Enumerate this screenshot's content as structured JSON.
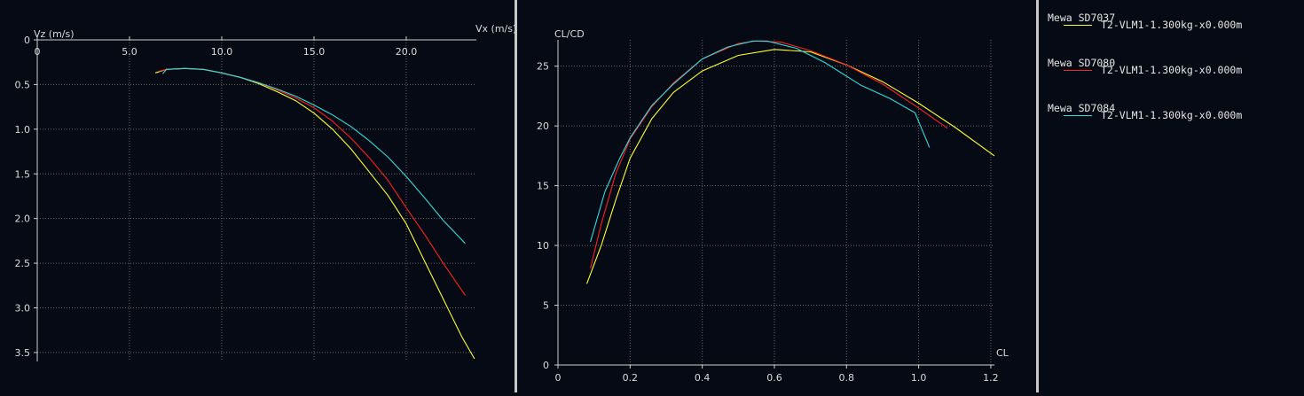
{
  "chart_data": [
    {
      "type": "line",
      "id": "polar-speed",
      "xlabel": "Vx (m/s)",
      "ylabel": "Vz (m/s)",
      "xlim": [
        0,
        23.8
      ],
      "ylim": [
        0,
        3.6
      ],
      "y_inverted": true,
      "x_axis_position": "top",
      "x_ticks": [
        0,
        5,
        10,
        15,
        20
      ],
      "x_tick_labels": [
        "0",
        "5.0",
        "10.0",
        "15.0",
        "20.0"
      ],
      "y_ticks": [
        0,
        0.5,
        1,
        1.5,
        2,
        2.5,
        3,
        3.5
      ],
      "y_tick_labels": [
        "0",
        "0.5",
        "1.0",
        "1.5",
        "2.0",
        "2.5",
        "3.0",
        "3.5"
      ],
      "grid": true,
      "series": [
        {
          "name": "T2-VLM1-1.300kg-x0.000m",
          "color": "#ffff33",
          "x": [
            6.4,
            7.0,
            8.0,
            9.0,
            10.0,
            11.0,
            12.0,
            13.0,
            14.0,
            15.0,
            16.0,
            17.0,
            18.0,
            19.0,
            20.0,
            21.0,
            22.0,
            23.0,
            23.7
          ],
          "y": [
            0.37,
            0.33,
            0.32,
            0.33,
            0.37,
            0.42,
            0.49,
            0.58,
            0.68,
            0.82,
            1.0,
            1.22,
            1.48,
            1.74,
            2.06,
            2.48,
            2.9,
            3.32,
            3.57
          ]
        },
        {
          "name": "T2-VLM1-1.300kg-x0.000m",
          "color": "#ff2020",
          "x": [
            6.6,
            7.0,
            8.0,
            9.0,
            10.0,
            11.0,
            12.0,
            13.0,
            14.0,
            15.0,
            16.0,
            17.0,
            18.0,
            19.0,
            20.0,
            21.0,
            22.0,
            23.2
          ],
          "y": [
            0.35,
            0.33,
            0.32,
            0.33,
            0.37,
            0.42,
            0.48,
            0.56,
            0.65,
            0.76,
            0.91,
            1.1,
            1.32,
            1.57,
            1.88,
            2.18,
            2.5,
            2.86
          ]
        },
        {
          "name": "T2-VLM1-1.300kg-x0.000m",
          "color": "#33dddd",
          "x": [
            6.8,
            7.0,
            8.0,
            9.0,
            10.0,
            11.0,
            12.0,
            13.0,
            14.0,
            15.0,
            16.0,
            17.0,
            18.0,
            19.0,
            20.0,
            21.0,
            22.0,
            23.2
          ],
          "y": [
            0.38,
            0.33,
            0.32,
            0.33,
            0.37,
            0.42,
            0.48,
            0.55,
            0.63,
            0.73,
            0.84,
            0.97,
            1.13,
            1.31,
            1.53,
            1.77,
            2.02,
            2.28
          ]
        }
      ]
    },
    {
      "type": "line",
      "id": "glide-ratio",
      "xlabel": "CL",
      "ylabel": "CL/CD",
      "xlim": [
        0,
        1.21
      ],
      "ylim": [
        0,
        27.2
      ],
      "x_ticks": [
        0,
        0.2,
        0.4,
        0.6,
        0.8,
        1.0,
        1.2
      ],
      "x_tick_labels": [
        "0",
        "0.2",
        "0.4",
        "0.6",
        "0.8",
        "1.0",
        "1.2"
      ],
      "y_ticks": [
        0,
        5,
        10,
        15,
        20,
        25
      ],
      "y_tick_labels": [
        "0",
        "5",
        "10",
        "15",
        "20",
        "25"
      ],
      "grid": true,
      "series": [
        {
          "name": "T2-VLM1-1.300kg-x0.000m",
          "color": "#ffff33",
          "x": [
            0.08,
            0.12,
            0.16,
            0.2,
            0.26,
            0.32,
            0.4,
            0.5,
            0.6,
            0.7,
            0.8,
            0.9,
            1.0,
            1.1,
            1.21
          ],
          "y": [
            6.8,
            10.0,
            13.8,
            17.3,
            20.6,
            22.8,
            24.6,
            25.9,
            26.4,
            26.2,
            25.1,
            23.7,
            21.9,
            19.9,
            17.5
          ]
        },
        {
          "name": "T2-VLM1-1.300kg-x0.000m",
          "color": "#ff2020",
          "x": [
            0.09,
            0.12,
            0.16,
            0.2,
            0.26,
            0.32,
            0.4,
            0.5,
            0.55,
            0.62,
            0.7,
            0.8,
            0.9,
            1.0,
            1.08
          ],
          "y": [
            8.1,
            11.8,
            16.0,
            18.9,
            21.6,
            23.6,
            25.6,
            26.9,
            27.1,
            27.0,
            26.3,
            25.1,
            23.5,
            21.5,
            19.8
          ]
        },
        {
          "name": "T2-VLM1-1.300kg-x0.000m",
          "color": "#33dddd",
          "x": [
            0.09,
            0.13,
            0.17,
            0.2,
            0.26,
            0.32,
            0.4,
            0.47,
            0.54,
            0.58,
            0.66,
            0.74,
            0.84,
            0.92,
            0.99,
            1.03
          ],
          "y": [
            10.3,
            14.5,
            17.2,
            19.0,
            21.7,
            23.5,
            25.6,
            26.6,
            27.1,
            27.1,
            26.5,
            25.3,
            23.4,
            22.3,
            21.1,
            18.2
          ]
        }
      ]
    }
  ],
  "legend": {
    "entries": [
      {
        "title": "Mewa SD7037",
        "label": "T2-VLM1-1.300kg-x0.000m",
        "color": "#ffff33"
      },
      {
        "title": "Mewa SD7080",
        "label": "T2-VLM1-1.300kg-x0.000m",
        "color": "#ff2020"
      },
      {
        "title": "Mewa SD7084",
        "label": "T2-VLM1-1.300kg-x0.000m",
        "color": "#33dddd"
      }
    ]
  }
}
